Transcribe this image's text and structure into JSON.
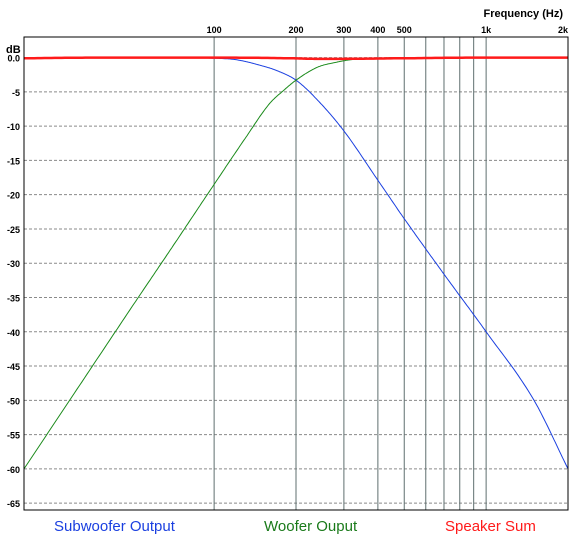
{
  "chart_data": {
    "type": "line",
    "title": "",
    "xlabel": "Frequency  (Hz)",
    "ylabel": "dB",
    "x_scale": "log",
    "xlim": [
      20,
      2000
    ],
    "ylim": [
      -66,
      3
    ],
    "grid": true,
    "legend_placement": "bottom",
    "x_major_ticks": [
      {
        "value": 100,
        "label": "100"
      },
      {
        "value": 200,
        "label": "200"
      },
      {
        "value": 300,
        "label": "300"
      },
      {
        "value": 400,
        "label": "400"
      },
      {
        "value": 500,
        "label": "500"
      },
      {
        "value": 1000,
        "label": "1k"
      },
      {
        "value": 2000,
        "label": "2k"
      }
    ],
    "x_minor_ticks": [
      600,
      700,
      800,
      900
    ],
    "y_ticks": [
      0,
      -5,
      -10,
      -15,
      -20,
      -25,
      -30,
      -35,
      -40,
      -45,
      -50,
      -55,
      -60,
      -65
    ],
    "y_tick_labels": [
      "0.0",
      "-5",
      "-10",
      "-15",
      "-20",
      "-25",
      "-30",
      "-35",
      "-40",
      "-45",
      "-50",
      "-55",
      "-60",
      "-65"
    ],
    "series": [
      {
        "name": "Subwoofer Output",
        "color": "#1a3fe0",
        "x": [
          20,
          50,
          80,
          100,
          120,
          150,
          170,
          200,
          240,
          300,
          400,
          500,
          700,
          1000,
          1500,
          2000
        ],
        "y": [
          0,
          0,
          0,
          -0.1,
          -0.3,
          -1.2,
          -1.9,
          -3.3,
          -6.2,
          -10.7,
          -17.9,
          -23.5,
          -31.6,
          -40.0,
          -50.0,
          -60.0
        ]
      },
      {
        "name": "Woofer Ouput",
        "color": "#1a8a1a",
        "x": [
          20,
          30,
          50,
          70,
          100,
          130,
          160,
          180,
          200,
          240,
          280,
          320,
          400,
          500,
          1000,
          2000
        ],
        "y": [
          -60.0,
          -49.5,
          -36.3,
          -27.7,
          -18.5,
          -11.8,
          -6.7,
          -4.8,
          -3.3,
          -1.4,
          -0.7,
          -0.3,
          -0.1,
          0,
          0,
          0
        ]
      },
      {
        "name": "Speaker Sum",
        "color": "#ff1a1a",
        "x": [
          20,
          40,
          100,
          190,
          250,
          500,
          1000,
          2000
        ],
        "y": [
          -0.1,
          0,
          0,
          -0.1,
          -0.2,
          -0.1,
          0,
          0
        ]
      }
    ]
  },
  "legend": {
    "subwoofer": "Subwoofer Output",
    "woofer": "Woofer Ouput",
    "sum": "Speaker Sum"
  }
}
